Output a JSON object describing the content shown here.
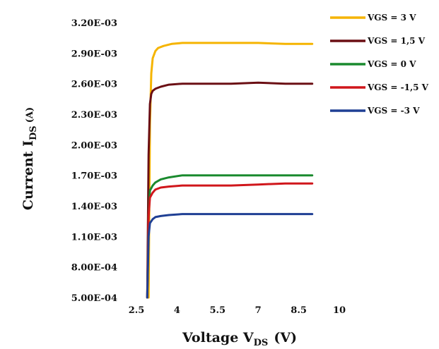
{
  "chart_data": {
    "type": "line",
    "title": "",
    "xlabel": {
      "main": "Voltage V",
      "sub": "DS",
      "unit": "(V)"
    },
    "ylabel": {
      "main": "Current  I",
      "sub": "DS",
      "unit": "(A)"
    },
    "xlim": [
      2.5,
      10
    ],
    "ylim": [
      0.0005,
      0.0032
    ],
    "x_ticks": [
      {
        "value": 2.5,
        "label": "2.5"
      },
      {
        "value": 4,
        "label": "4"
      },
      {
        "value": 5.5,
        "label": "5.5"
      },
      {
        "value": 7,
        "label": "7"
      },
      {
        "value": 8.5,
        "label": "8.5"
      },
      {
        "value": 10,
        "label": "10"
      }
    ],
    "y_ticks": [
      {
        "value": 0.0005,
        "label": "5.00E-04"
      },
      {
        "value": 0.0008,
        "label": "8.00E-04"
      },
      {
        "value": 0.0011,
        "label": "1.10E-03"
      },
      {
        "value": 0.0014,
        "label": "1.40E-03"
      },
      {
        "value": 0.0017,
        "label": "1.70E-03"
      },
      {
        "value": 0.002,
        "label": "2.00E-03"
      },
      {
        "value": 0.0023,
        "label": "2.30E-03"
      },
      {
        "value": 0.0026,
        "label": "2.60E-03"
      },
      {
        "value": 0.0029,
        "label": "2.90E-03"
      },
      {
        "value": 0.0032,
        "label": "3.20E-03"
      }
    ],
    "grid": false,
    "legend_position": "top-right",
    "series": [
      {
        "name": "VGS = 3 V",
        "color": "#f5b400",
        "x": [
          2.95,
          3.0,
          3.05,
          3.1,
          3.2,
          3.3,
          3.5,
          3.8,
          4.2,
          5,
          6,
          7,
          8,
          9
        ],
        "y": [
          0.0005,
          0.0022,
          0.0027,
          0.00285,
          0.00292,
          0.00295,
          0.00297,
          0.00299,
          0.003,
          0.003,
          0.003,
          0.003,
          0.00299,
          0.00299
        ]
      },
      {
        "name": "VGS = 1,5 V",
        "color": "#6b0f14",
        "x": [
          2.9,
          2.95,
          3.0,
          3.05,
          3.1,
          3.2,
          3.4,
          3.7,
          4.2,
          5,
          6,
          7,
          8,
          9
        ],
        "y": [
          0.0005,
          0.0019,
          0.0024,
          0.0025,
          0.00253,
          0.00255,
          0.00257,
          0.00259,
          0.0026,
          0.0026,
          0.0026,
          0.00261,
          0.0026,
          0.0026
        ]
      },
      {
        "name": "VGS = 0 V",
        "color": "#1a8a2e",
        "x": [
          2.9,
          2.95,
          3.0,
          3.1,
          3.2,
          3.4,
          3.7,
          4.2,
          5,
          6,
          7,
          8,
          9
        ],
        "y": [
          0.0005,
          0.0013,
          0.00155,
          0.0016,
          0.00163,
          0.00166,
          0.00168,
          0.0017,
          0.0017,
          0.0017,
          0.0017,
          0.0017,
          0.0017
        ]
      },
      {
        "name": "VGS = -1,5 V",
        "color": "#d0161b",
        "x": [
          2.9,
          2.95,
          3.0,
          3.1,
          3.2,
          3.4,
          3.7,
          4.2,
          5,
          6,
          7,
          8,
          9
        ],
        "y": [
          0.0005,
          0.0013,
          0.00148,
          0.00153,
          0.00156,
          0.00158,
          0.00159,
          0.0016,
          0.0016,
          0.0016,
          0.00161,
          0.00162,
          0.00162
        ]
      },
      {
        "name": "VGS = -3 V",
        "color": "#1f3f94",
        "x": [
          2.9,
          2.95,
          3.0,
          3.1,
          3.2,
          3.4,
          3.7,
          4.2,
          5,
          6,
          7,
          8,
          9
        ],
        "y": [
          0.0005,
          0.0011,
          0.00123,
          0.00127,
          0.00129,
          0.0013,
          0.00131,
          0.00132,
          0.00132,
          0.00132,
          0.00132,
          0.00132,
          0.00132
        ]
      }
    ]
  }
}
